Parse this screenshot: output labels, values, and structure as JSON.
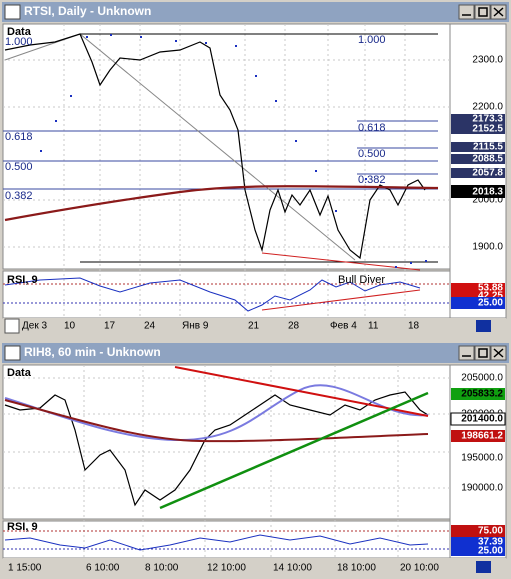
{
  "windows": [
    {
      "title": "RTSI, Daily - Unknown",
      "pane_label": "Data",
      "fib_left": [
        "1.000",
        "0.618",
        "0.500",
        "0.382"
      ],
      "fib_right": [
        "1.000",
        "0.618",
        "0.500",
        "0.382"
      ],
      "price_axis": [
        "2300.0",
        "2200.0",
        "2000.0",
        "1900.0"
      ],
      "price_tags": [
        "2173.3",
        "2152.5",
        "2115.5",
        "2088.5",
        "2057.8",
        "2018.3"
      ],
      "indicator": {
        "label": "RSI, 9",
        "annotation": "Bull Diver",
        "tags": [
          "53.88",
          "42.25",
          "25.00"
        ]
      },
      "time_axis": [
        "Дек 3",
        "10",
        "17",
        "24",
        "Янв 9",
        "21",
        "28",
        "Фев 4",
        "11",
        "18"
      ]
    },
    {
      "title": "RIH8, 60 min - Unknown",
      "pane_label": "Data",
      "price_axis": [
        "205000.0",
        "200000.0",
        "195000.0",
        "190000.0"
      ],
      "price_tags": [
        "205833.2",
        "201400.0",
        "198661.2"
      ],
      "indicator": {
        "label": "RSI, 9",
        "tags": [
          "75.00",
          "37.39",
          "25.00"
        ]
      },
      "time_axis": [
        "1 15:00",
        "6 10:00",
        "8 10:00",
        "12 10:00",
        "14 10:00",
        "18 10:00",
        "20 10:00"
      ]
    }
  ]
}
